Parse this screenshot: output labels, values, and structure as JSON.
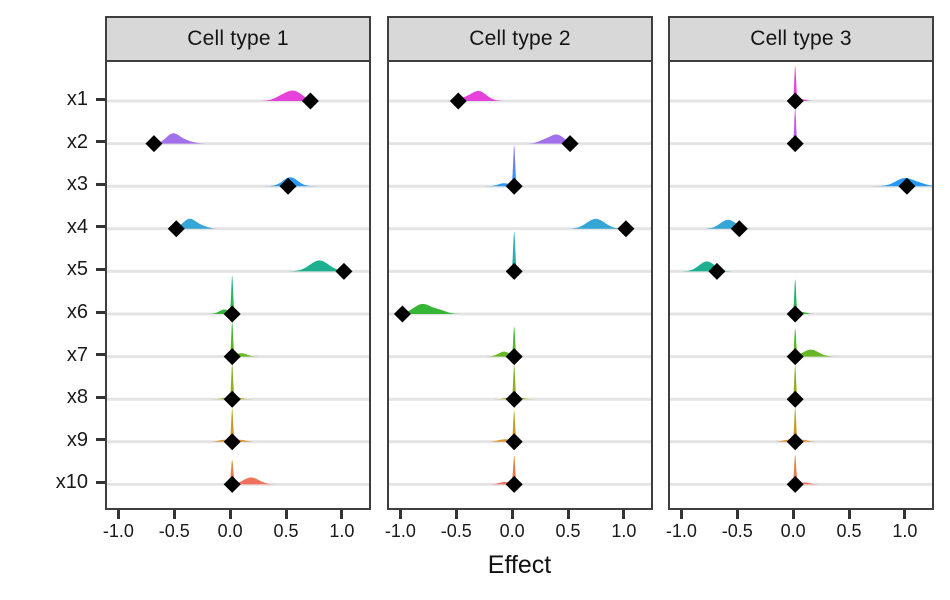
{
  "colors": {
    "background": "#ffffff",
    "panel_border": "#3f3f3f",
    "strip_background": "#d8d8d8",
    "strip_border": "#3f3f3f",
    "grid_line": "#e4e4e4",
    "axis_text": "#1a1a1a",
    "tick_mark": "#333333",
    "point": "#000000"
  },
  "chart_data": {
    "type": "area",
    "subtype": "faceted-density-ridgelines-with-point-estimates",
    "title": "",
    "xlabel": "Effect",
    "ylabel": "",
    "xlim": [
      -1.12,
      1.26
    ],
    "x_ticks": [
      -1.0,
      -0.5,
      0.0,
      0.5,
      1.0
    ],
    "x_tick_labels": [
      "-1.0",
      "-0.5",
      "0.0",
      "0.5",
      "1.0"
    ],
    "categories": [
      "x1",
      "x2",
      "x3",
      "x4",
      "x5",
      "x6",
      "x7",
      "x8",
      "x9",
      "x10"
    ],
    "row_colors": [
      "#E53BD9",
      "#9E6CE9",
      "#2196F5",
      "#2FA3D6",
      "#16AE8C",
      "#2FB32F",
      "#68B51E",
      "#A5A414",
      "#DB8E26",
      "#F4685F"
    ],
    "grid": "horizontal-major-only",
    "legend": "none",
    "point_marker": "diamond",
    "facets": [
      {
        "title": "Cell type 1",
        "rows": [
          {
            "var": "x1",
            "point": 0.7,
            "density": [
              {
                "c": 0.55,
                "s": 0.075,
                "h": 10
              },
              {
                "c": 0.43,
                "s": 0.06,
                "h": 3
              }
            ]
          },
          {
            "var": "x2",
            "point": -0.7,
            "density": [
              {
                "c": -0.53,
                "s": 0.06,
                "h": 10
              },
              {
                "c": -0.41,
                "s": 0.06,
                "h": 2.5
              }
            ]
          },
          {
            "var": "x3",
            "point": 0.5,
            "density": [
              {
                "c": 0.52,
                "s": 0.065,
                "h": 9
              }
            ]
          },
          {
            "var": "x4",
            "point": -0.5,
            "density": [
              {
                "c": -0.38,
                "s": 0.06,
                "h": 10
              },
              {
                "c": -0.26,
                "s": 0.05,
                "h": 2
              }
            ]
          },
          {
            "var": "x5",
            "point": 1.0,
            "density": [
              {
                "c": 0.78,
                "s": 0.085,
                "h": 11
              }
            ]
          },
          {
            "var": "x6",
            "point": 0.0,
            "density": [
              {
                "c": 0,
                "s": 0.008,
                "h": 37
              },
              {
                "c": -0.07,
                "s": 0.045,
                "h": 4.5
              }
            ]
          },
          {
            "var": "x7",
            "point": 0.0,
            "density": [
              {
                "c": 0,
                "s": 0.008,
                "h": 34
              },
              {
                "c": 0.08,
                "s": 0.05,
                "h": 3.5
              }
            ]
          },
          {
            "var": "x8",
            "point": 0.0,
            "density": [
              {
                "c": 0,
                "s": 0.008,
                "h": 34
              },
              {
                "c": 0.05,
                "s": 0.04,
                "h": 1.5
              },
              {
                "c": -0.05,
                "s": 0.04,
                "h": 1.5
              }
            ]
          },
          {
            "var": "x9",
            "point": 0.0,
            "density": [
              {
                "c": 0,
                "s": 0.008,
                "h": 32
              },
              {
                "c": 0.07,
                "s": 0.05,
                "h": 2
              },
              {
                "c": -0.07,
                "s": 0.05,
                "h": 2
              }
            ]
          },
          {
            "var": "x10",
            "point": 0.0,
            "density": [
              {
                "c": 0,
                "s": 0.01,
                "h": 24
              },
              {
                "c": 0.17,
                "s": 0.07,
                "h": 7
              }
            ]
          }
        ]
      },
      {
        "title": "Cell type 2",
        "rows": [
          {
            "var": "x1",
            "point": -0.5,
            "density": [
              {
                "c": -0.32,
                "s": 0.07,
                "h": 10
              },
              {
                "c": -0.45,
                "s": 0.05,
                "h": 2
              }
            ]
          },
          {
            "var": "x2",
            "point": 0.5,
            "density": [
              {
                "c": 0.38,
                "s": 0.065,
                "h": 9
              },
              {
                "c": 0.26,
                "s": 0.05,
                "h": 2.5
              }
            ]
          },
          {
            "var": "x3",
            "point": 0.0,
            "density": [
              {
                "c": 0,
                "s": 0.009,
                "h": 40
              },
              {
                "c": -0.09,
                "s": 0.05,
                "h": 3
              }
            ]
          },
          {
            "var": "x4",
            "point": 1.0,
            "density": [
              {
                "c": 0.73,
                "s": 0.08,
                "h": 10
              }
            ]
          },
          {
            "var": "x5",
            "point": 0.0,
            "density": [
              {
                "c": 0,
                "s": 0.009,
                "h": 40
              }
            ]
          },
          {
            "var": "x6",
            "point": -1.0,
            "density": [
              {
                "c": -0.82,
                "s": 0.08,
                "h": 10
              },
              {
                "c": -0.66,
                "s": 0.06,
                "h": 3
              }
            ]
          },
          {
            "var": "x7",
            "point": 0.0,
            "density": [
              {
                "c": 0,
                "s": 0.008,
                "h": 29
              },
              {
                "c": -0.09,
                "s": 0.05,
                "h": 5
              }
            ]
          },
          {
            "var": "x8",
            "point": 0.0,
            "density": [
              {
                "c": 0,
                "s": 0.008,
                "h": 33
              },
              {
                "c": -0.05,
                "s": 0.04,
                "h": 1.5
              },
              {
                "c": 0.05,
                "s": 0.04,
                "h": 1.5
              }
            ]
          },
          {
            "var": "x9",
            "point": 0.0,
            "density": [
              {
                "c": 0,
                "s": 0.008,
                "h": 30
              },
              {
                "c": -0.08,
                "s": 0.06,
                "h": 2.5
              }
            ]
          },
          {
            "var": "x10",
            "point": 0.0,
            "density": [
              {
                "c": 0,
                "s": 0.009,
                "h": 28
              },
              {
                "c": -0.08,
                "s": 0.05,
                "h": 2.5
              }
            ]
          }
        ]
      },
      {
        "title": "Cell type 3",
        "rows": [
          {
            "var": "x1",
            "point": 0.0,
            "density": [
              {
                "c": 0,
                "s": 0.008,
                "h": 34
              },
              {
                "c": 0.05,
                "s": 0.04,
                "h": 2
              }
            ]
          },
          {
            "var": "x2",
            "point": 0.0,
            "density": [
              {
                "c": 0,
                "s": 0.008,
                "h": 35
              }
            ]
          },
          {
            "var": "x3",
            "point": 1.0,
            "density": [
              {
                "c": 0.98,
                "s": 0.08,
                "h": 8
              },
              {
                "c": 1.12,
                "s": 0.06,
                "h": 2
              }
            ]
          },
          {
            "var": "x4",
            "point": -0.5,
            "density": [
              {
                "c": -0.6,
                "s": 0.07,
                "h": 9
              }
            ]
          },
          {
            "var": "x5",
            "point": -0.7,
            "density": [
              {
                "c": -0.79,
                "s": 0.07,
                "h": 10
              }
            ]
          },
          {
            "var": "x6",
            "point": 0.0,
            "density": [
              {
                "c": 0,
                "s": 0.008,
                "h": 34
              },
              {
                "c": 0.06,
                "s": 0.04,
                "h": 2
              }
            ]
          },
          {
            "var": "x7",
            "point": 0.0,
            "density": [
              {
                "c": 0,
                "s": 0.008,
                "h": 27
              },
              {
                "c": 0.14,
                "s": 0.07,
                "h": 7
              }
            ]
          },
          {
            "var": "x8",
            "point": 0.0,
            "density": [
              {
                "c": 0,
                "s": 0.008,
                "h": 34
              }
            ]
          },
          {
            "var": "x9",
            "point": 0.0,
            "density": [
              {
                "c": 0,
                "s": 0.008,
                "h": 32
              },
              {
                "c": 0.06,
                "s": 0.05,
                "h": 2
              },
              {
                "c": -0.06,
                "s": 0.05,
                "h": 2
              }
            ]
          },
          {
            "var": "x10",
            "point": 0.0,
            "density": [
              {
                "c": 0,
                "s": 0.009,
                "h": 29
              },
              {
                "c": 0.08,
                "s": 0.05,
                "h": 2
              }
            ]
          }
        ]
      }
    ]
  }
}
